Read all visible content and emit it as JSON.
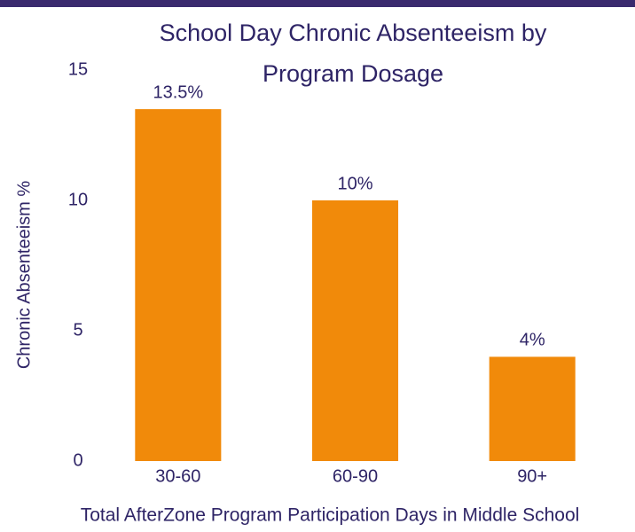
{
  "chart_data": {
    "type": "bar",
    "title": "School Day Chronic Absenteeism by Program Dosage",
    "categories": [
      "30-60",
      "60-90",
      "90+"
    ],
    "values": [
      13.5,
      10,
      4
    ],
    "value_labels": [
      "13.5%",
      "10%",
      "4%"
    ],
    "color": "#f18a0a",
    "ylim": [
      0,
      15
    ],
    "yticks": [
      0,
      5,
      10,
      15
    ],
    "y_label": "Chronic Absenteeism %",
    "x_label": "Total AfterZone Program Participation Days in Middle School",
    "grid": false
  }
}
